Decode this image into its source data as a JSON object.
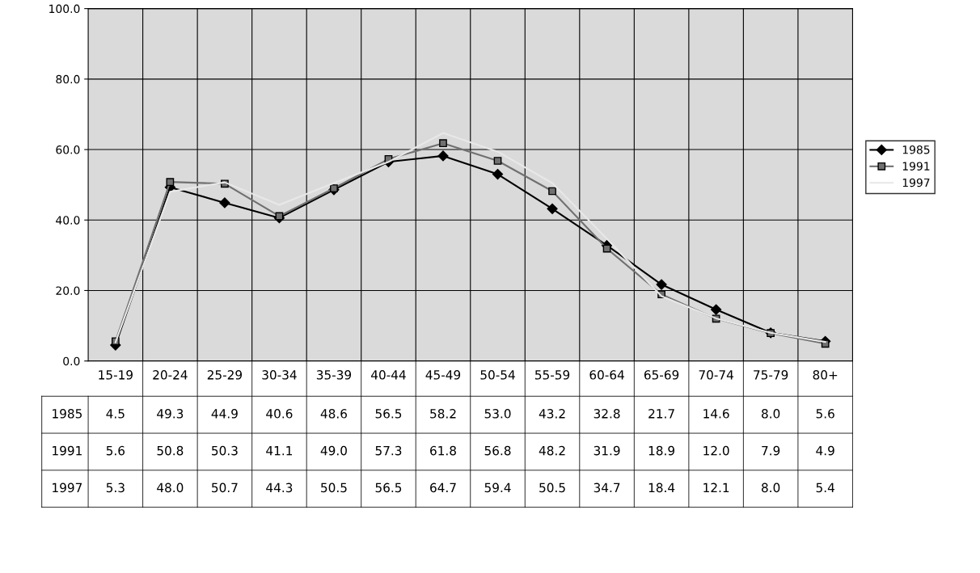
{
  "chart_data": {
    "type": "line",
    "categories": [
      "15-19",
      "20-24",
      "25-29",
      "30-34",
      "35-39",
      "40-44",
      "45-49",
      "50-54",
      "55-59",
      "60-64",
      "65-69",
      "70-74",
      "75-79",
      "80+"
    ],
    "series": [
      {
        "name": "1985",
        "color": "#000000",
        "marker": "diamond",
        "values": [
          4.5,
          49.3,
          44.9,
          40.6,
          48.6,
          56.5,
          58.2,
          53.0,
          43.2,
          32.8,
          21.7,
          14.6,
          8.0,
          5.6
        ],
        "value_labels": [
          "4.5",
          "49.3",
          "44.9",
          "40.6",
          "48.6",
          "56.5",
          "58.2",
          "53.0",
          "43.2",
          "32.8",
          "21.7",
          "14.6",
          "8.0",
          "5.6"
        ]
      },
      {
        "name": "1991",
        "color": "#707070",
        "marker": "square",
        "values": [
          5.6,
          50.8,
          50.3,
          41.1,
          49.0,
          57.3,
          61.8,
          56.8,
          48.2,
          31.9,
          18.9,
          12.0,
          7.9,
          4.9
        ],
        "value_labels": [
          "5.6",
          "50.8",
          "50.3",
          "41.1",
          "49.0",
          "57.3",
          "61.8",
          "56.8",
          "48.2",
          "31.9",
          "18.9",
          "12.0",
          "7.9",
          "4.9"
        ]
      },
      {
        "name": "1997",
        "color": "#e8e8e8",
        "marker": "none",
        "values": [
          5.3,
          48.0,
          50.7,
          44.3,
          50.5,
          56.5,
          64.7,
          59.4,
          50.5,
          34.7,
          18.4,
          12.1,
          8.0,
          5.4
        ],
        "value_labels": [
          "5.3",
          "48.0",
          "50.7",
          "44.3",
          "50.5",
          "56.5",
          "64.7",
          "59.4",
          "50.5",
          "34.7",
          "18.4",
          "12.1",
          "8.0",
          "5.4"
        ]
      }
    ],
    "ylim": [
      0,
      100
    ],
    "yticks": [
      {
        "value": 0,
        "label": "0.0"
      },
      {
        "value": 20,
        "label": "20.0"
      },
      {
        "value": 40,
        "label": "40.0"
      },
      {
        "value": 60,
        "label": "60.0"
      },
      {
        "value": 80,
        "label": "80.0"
      },
      {
        "value": 100,
        "label": "100.0"
      }
    ],
    "grid": true,
    "legend": "right",
    "line_style": "solid"
  }
}
